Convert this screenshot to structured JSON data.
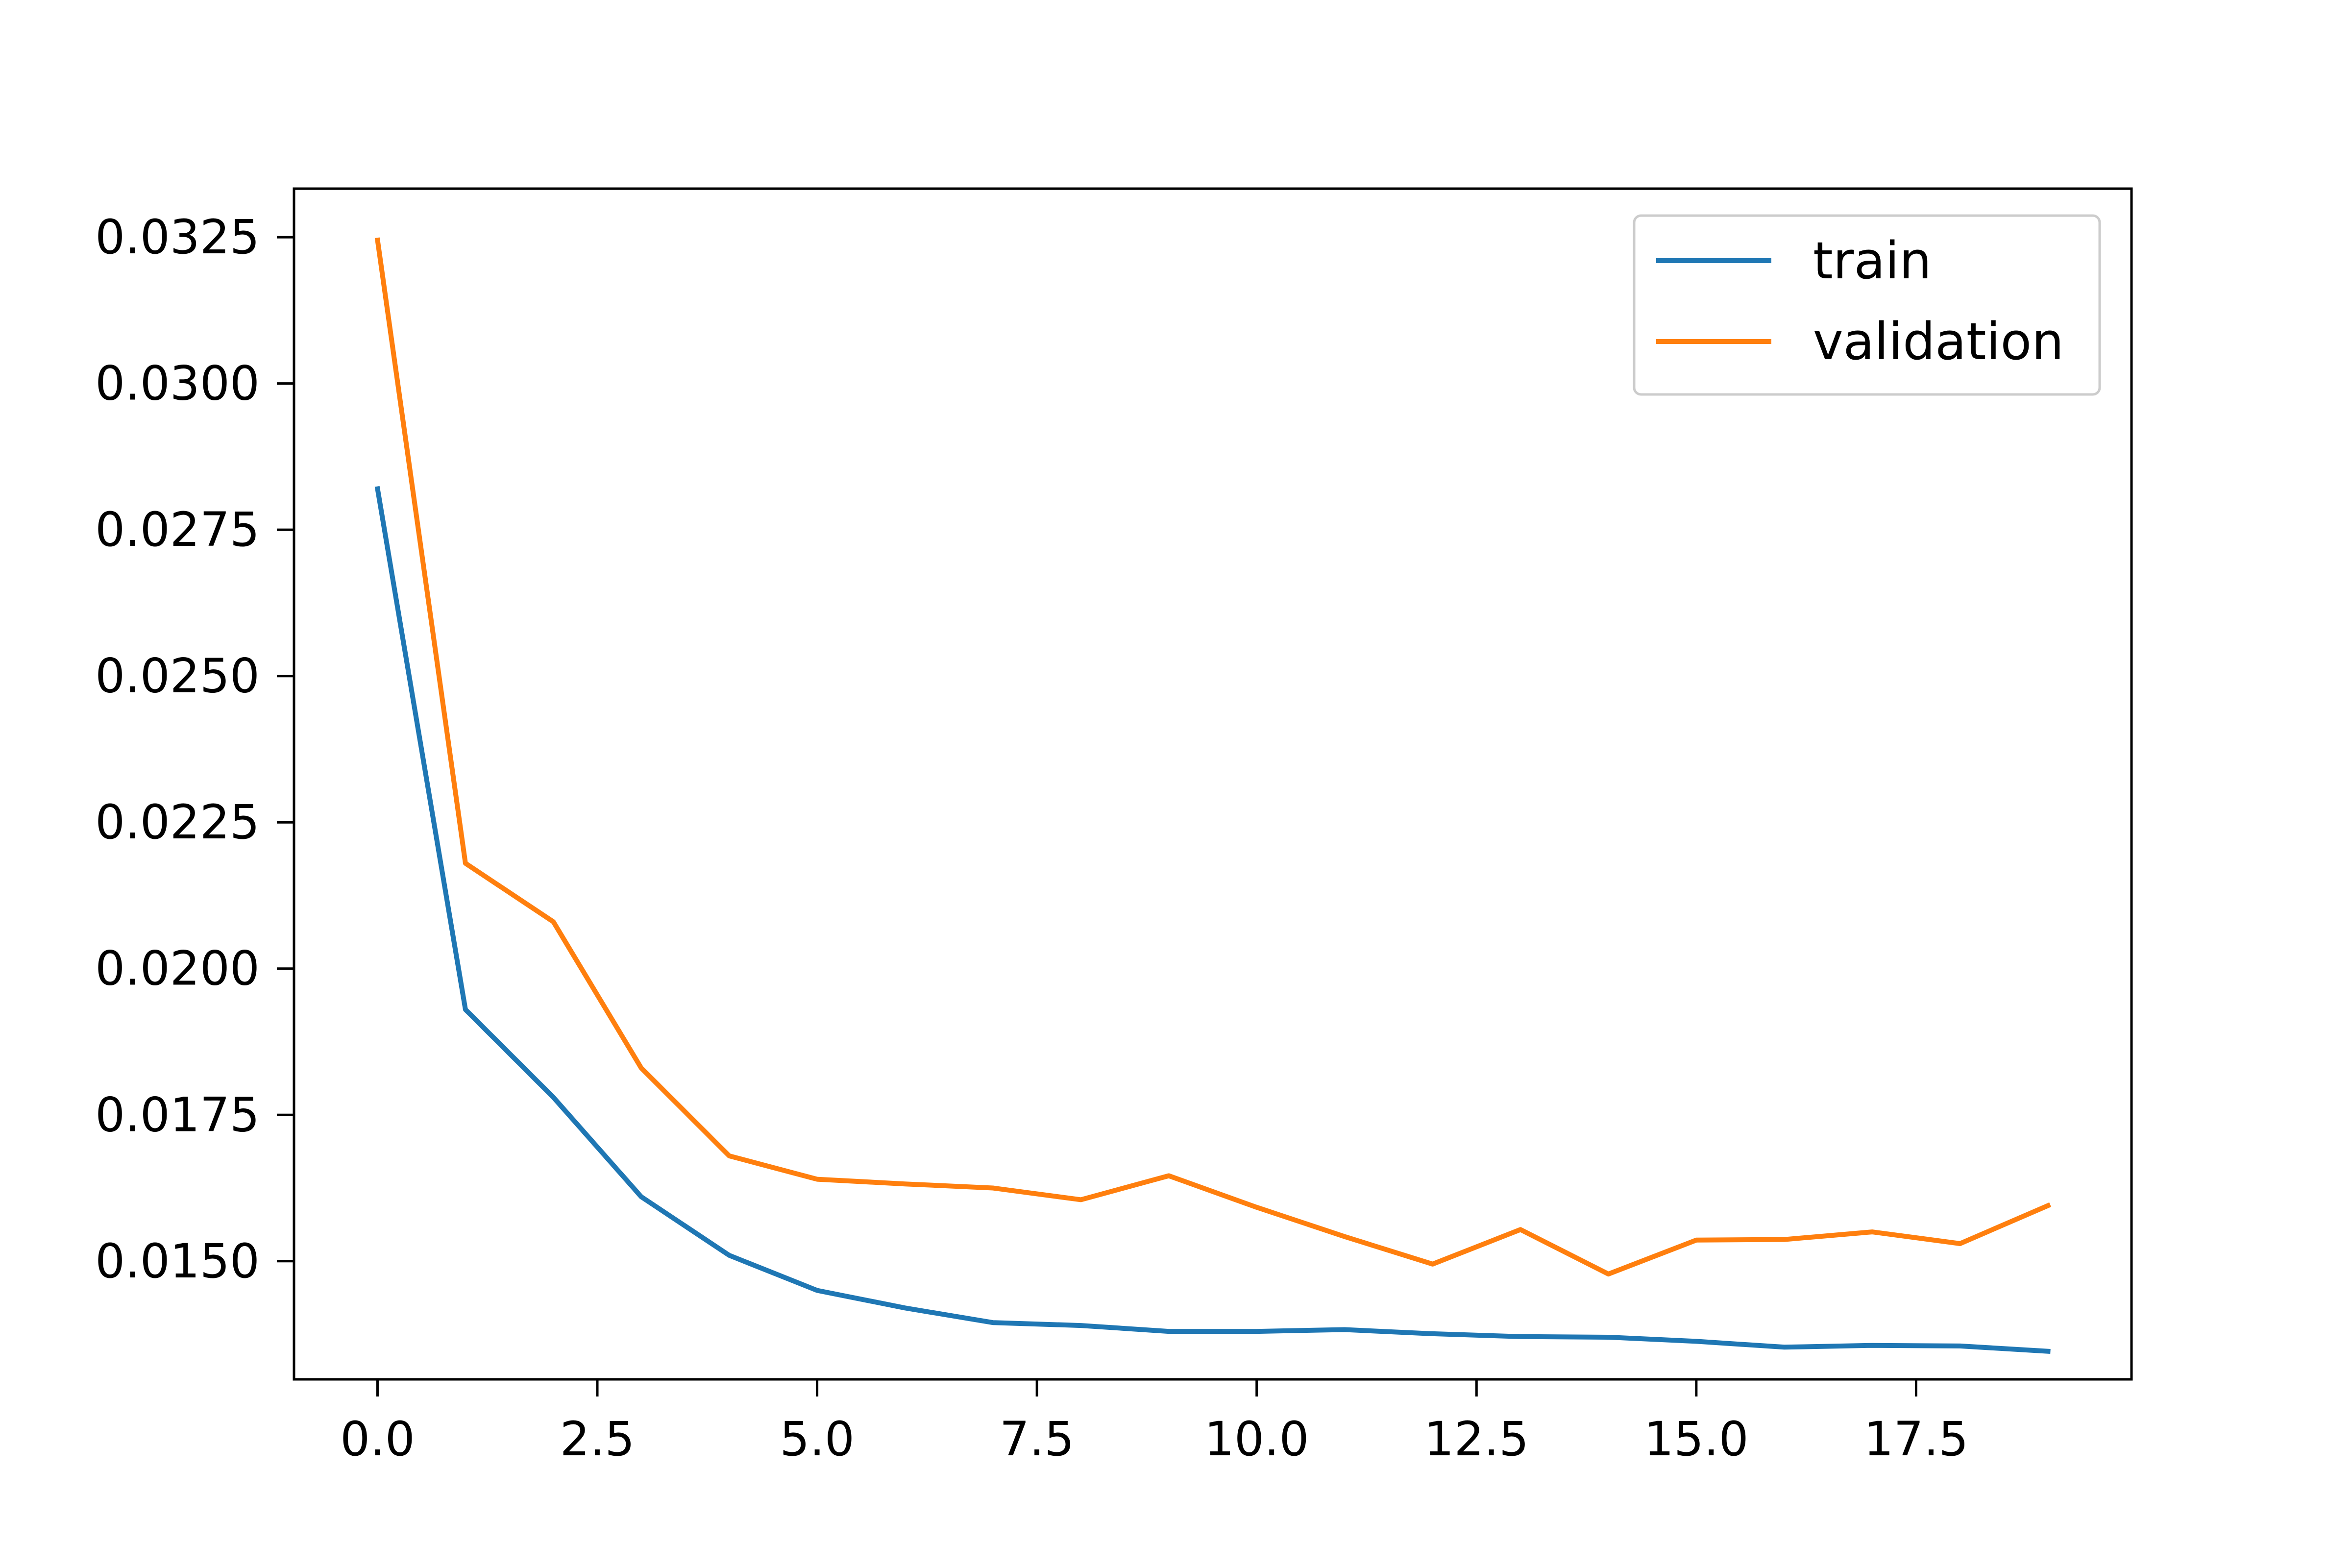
{
  "chart_data": {
    "type": "line",
    "title": "",
    "xlabel": "",
    "ylabel": "",
    "x": [
      0,
      1,
      2,
      3,
      4,
      5,
      6,
      7,
      8,
      9,
      10,
      11,
      12,
      13,
      14,
      15,
      16,
      17,
      18,
      19
    ],
    "series": [
      {
        "name": "train",
        "color": "#1f77b4",
        "values": [
          0.0282,
          0.0193,
          0.0178,
          0.0161,
          0.0151,
          0.0145,
          0.0142,
          0.01395,
          0.0139,
          0.0138,
          0.0138,
          0.01383,
          0.01376,
          0.01371,
          0.0137,
          0.01363,
          0.01353,
          0.01356,
          0.01355,
          0.01346
        ]
      },
      {
        "name": "validation",
        "color": "#ff7f0e",
        "values": [
          0.03245,
          0.0218,
          0.0208,
          0.0183,
          0.0168,
          0.0164,
          0.01632,
          0.01625,
          0.01605,
          0.01646,
          0.01592,
          0.01542,
          0.01495,
          0.01554,
          0.01478,
          0.01536,
          0.01537,
          0.0155,
          0.0153,
          0.01595
        ]
      }
    ],
    "xlim": [
      -0.95,
      19.95
    ],
    "ylim": [
      0.01298,
      0.03333
    ],
    "xticks": [
      0.0,
      2.5,
      5.0,
      7.5,
      10.0,
      12.5,
      15.0,
      17.5
    ],
    "xtick_labels": [
      "0.0",
      "2.5",
      "5.0",
      "7.5",
      "10.0",
      "12.5",
      "15.0",
      "17.5"
    ],
    "yticks": [
      0.015,
      0.0175,
      0.02,
      0.0225,
      0.025,
      0.0275,
      0.03,
      0.0325
    ],
    "ytick_labels": [
      "0.0150",
      "0.0175",
      "0.0200",
      "0.0225",
      "0.0250",
      "0.0275",
      "0.0300",
      "0.0325"
    ],
    "grid": false,
    "legend_position": "top-right"
  }
}
